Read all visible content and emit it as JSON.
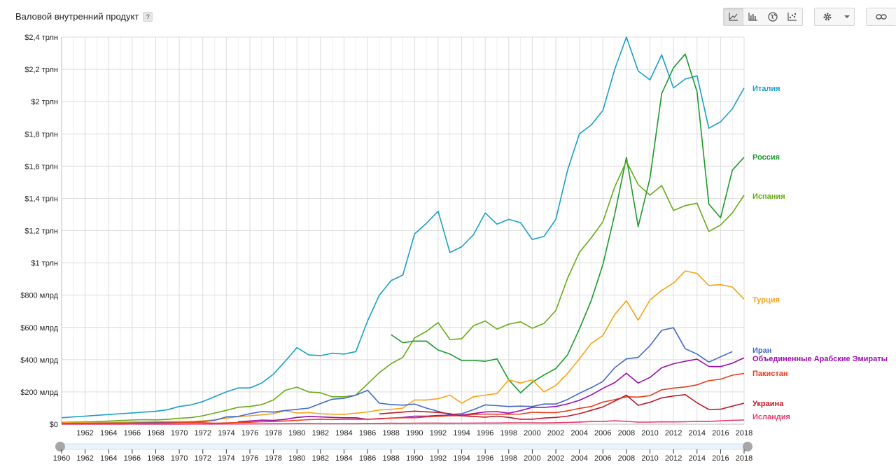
{
  "header": {
    "title": "Валовой внутренний продукт",
    "help_label": "?"
  },
  "toolbar": {
    "chart_types": [
      {
        "name": "line-chart-icon",
        "active": true
      },
      {
        "name": "bar-chart-icon",
        "active": false
      },
      {
        "name": "map-globe-icon",
        "active": false
      },
      {
        "name": "scatter-chart-icon",
        "active": false
      }
    ],
    "settings_icon": "gear-icon",
    "dropdown_icon": "chevron-down-icon",
    "link_icon": "link-icon"
  },
  "chart_data": {
    "type": "line",
    "title": "",
    "xlabel": "",
    "ylabel": "",
    "xlim": [
      1960,
      2018
    ],
    "ylim": [
      0,
      2400
    ],
    "y_ticks": [
      {
        "value": 0,
        "label": "$0"
      },
      {
        "value": 200,
        "label": "$200 млрд"
      },
      {
        "value": 400,
        "label": "$400 млрд"
      },
      {
        "value": 600,
        "label": "$600 млрд"
      },
      {
        "value": 800,
        "label": "$800 млрд"
      },
      {
        "value": 1000,
        "label": "$1 трлн"
      },
      {
        "value": 1200,
        "label": "$1,2 трлн"
      },
      {
        "value": 1400,
        "label": "$1,4 трлн"
      },
      {
        "value": 1600,
        "label": "$1,6 трлн"
      },
      {
        "value": 1800,
        "label": "$1,8 трлн"
      },
      {
        "value": 2000,
        "label": "$2 трлн"
      },
      {
        "value": 2200,
        "label": "$2,2 трлн"
      },
      {
        "value": 2400,
        "label": "$2,4 трлн"
      }
    ],
    "x_ticks": [
      1962,
      1964,
      1966,
      1968,
      1970,
      1972,
      1974,
      1976,
      1978,
      1980,
      1982,
      1984,
      1986,
      1988,
      1990,
      1992,
      1994,
      1996,
      1998,
      2000,
      2002,
      2004,
      2006,
      2008,
      2010,
      2012,
      2014,
      2016,
      2018
    ],
    "slider_ticks": [
      1960,
      1962,
      1964,
      1966,
      1968,
      1970,
      1972,
      1974,
      1976,
      1978,
      1980,
      1982,
      1984,
      1986,
      1988,
      1990,
      1992,
      1994,
      1996,
      1998,
      2000,
      2002,
      2004,
      2006,
      2008,
      2010,
      2012,
      2014,
      2016,
      2018
    ],
    "grid": true,
    "legend": "right",
    "series": [
      {
        "name": "Италия",
        "color": "#1a9fc7",
        "start": 1960,
        "values": [
          40,
          45,
          50,
          55,
          60,
          65,
          70,
          75,
          80,
          90,
          110,
          120,
          140,
          170,
          200,
          225,
          225,
          255,
          310,
          390,
          475,
          430,
          425,
          440,
          435,
          450,
          640,
          800,
          890,
          925,
          1180,
          1245,
          1320,
          1065,
          1100,
          1175,
          1310,
          1240,
          1270,
          1250,
          1145,
          1165,
          1270,
          1575,
          1800,
          1855,
          1945,
          2200,
          2400,
          2190,
          2135,
          2290,
          2085,
          2140,
          2160,
          1835,
          1875,
          1955,
          2085
        ]
      },
      {
        "name": "Россия",
        "color": "#1b9a2b",
        "start": 1988,
        "values": [
          555,
          505,
          515,
          515,
          460,
          435,
          395,
          395,
          390,
          405,
          275,
          195,
          260,
          305,
          345,
          430,
          590,
          765,
          990,
          1300,
          1655,
          1225,
          1525,
          2050,
          2210,
          2295,
          2060,
          1365,
          1280,
          1575,
          1655
        ]
      },
      {
        "name": "Испания",
        "color": "#67aa17",
        "start": 1960,
        "values": [
          12,
          13,
          14,
          16,
          19,
          23,
          26,
          28,
          27,
          30,
          37,
          41,
          52,
          69,
          86,
          105,
          110,
          121,
          150,
          210,
          230,
          200,
          195,
          170,
          170,
          180,
          250,
          320,
          375,
          415,
          535,
          575,
          630,
          525,
          530,
          610,
          640,
          590,
          620,
          635,
          595,
          625,
          705,
          905,
          1065,
          1155,
          1255,
          1470,
          1630,
          1485,
          1420,
          1480,
          1325,
          1355,
          1370,
          1195,
          1235,
          1310,
          1420
        ]
      },
      {
        "name": "Турция",
        "color": "#f5a316",
        "start": 1960,
        "values": [
          14,
          8,
          9,
          10,
          11,
          12,
          14,
          15,
          16,
          17,
          17,
          16,
          21,
          27,
          37,
          47,
          52,
          58,
          65,
          84,
          69,
          72,
          65,
          62,
          61,
          68,
          76,
          88,
          92,
          100,
          150,
          150,
          158,
          180,
          130,
          170,
          180,
          190,
          275,
          255,
          275,
          200,
          240,
          315,
          405,
          500,
          550,
          680,
          765,
          645,
          770,
          830,
          875,
          950,
          935,
          860,
          865,
          850,
          775
        ]
      },
      {
        "name": "Иран",
        "color": "#4169c8",
        "start": 1960,
        "values": [
          4,
          5,
          5,
          6,
          6,
          7,
          8,
          9,
          10,
          11,
          11,
          13,
          16,
          24,
          45,
          48,
          65,
          78,
          75,
          85,
          92,
          100,
          128,
          155,
          160,
          180,
          210,
          130,
          122,
          118,
          125,
          100,
          80,
          60,
          65,
          90,
          120,
          115,
          110,
          112,
          110,
          125,
          125,
          153,
          192,
          226,
          265,
          350,
          405,
          414,
          487,
          582,
          598,
          468,
          435,
          385,
          418,
          450
        ]
      },
      {
        "name": "Объединенные Арабские Эмираты",
        "color": "#9c0cae",
        "start": 1975,
        "values": [
          15,
          20,
          25,
          24,
          30,
          42,
          48,
          45,
          42,
          40,
          40,
          30,
          35,
          37,
          42,
          50,
          50,
          54,
          56,
          57,
          66,
          76,
          78,
          68,
          84,
          104,
          104,
          110,
          126,
          148,
          181,
          222,
          258,
          316,
          255,
          290,
          350,
          375,
          390,
          403,
          358,
          357,
          378,
          412
        ]
      },
      {
        "name": "Пакистан",
        "color": "#e83c1e",
        "start": 1960,
        "values": [
          4,
          4,
          5,
          5,
          5,
          6,
          6,
          7,
          7,
          8,
          9,
          10,
          9,
          6,
          8,
          11,
          12,
          15,
          17,
          20,
          24,
          28,
          31,
          29,
          31,
          31,
          31,
          33,
          38,
          40,
          40,
          46,
          49,
          52,
          52,
          61,
          63,
          62,
          62,
          63,
          74,
          72,
          72,
          83,
          98,
          110,
          137,
          152,
          170,
          168,
          177,
          213,
          224,
          231,
          244,
          270,
          279,
          304,
          314
        ]
      },
      {
        "name": "Украина",
        "color": "#c01a28",
        "start": 1987,
        "values": [
          64,
          70,
          75,
          81,
          77,
          73,
          65,
          52,
          48,
          44,
          50,
          42,
          31,
          31,
          38,
          42,
          50,
          65,
          86,
          107,
          143,
          180,
          117,
          136,
          163,
          175,
          183,
          133,
          91,
          93,
          112,
          130
        ]
      },
      {
        "name": "Исландия",
        "color": "#e33d6f",
        "start": 1960,
        "values": [
          0.3,
          0.3,
          0.3,
          0.4,
          0.5,
          0.6,
          0.7,
          0.6,
          0.5,
          0.5,
          0.5,
          0.7,
          0.8,
          1.0,
          1.3,
          1.4,
          1.7,
          2.2,
          2.6,
          3.0,
          3.4,
          3.5,
          3.2,
          2.9,
          3.0,
          3.0,
          4.0,
          5.4,
          6.1,
          5.6,
          6.4,
          6.8,
          7.0,
          6.1,
          6.3,
          7.0,
          7.3,
          7.4,
          8.3,
          8.7,
          8.7,
          8.0,
          9.0,
          11.0,
          13.3,
          16.3,
          16.9,
          21.3,
          17.5,
          13.1,
          13.2,
          14.7,
          14.2,
          15.4,
          17.2,
          17.1,
          20.8,
          24.5,
          26.2
        ]
      }
    ]
  }
}
